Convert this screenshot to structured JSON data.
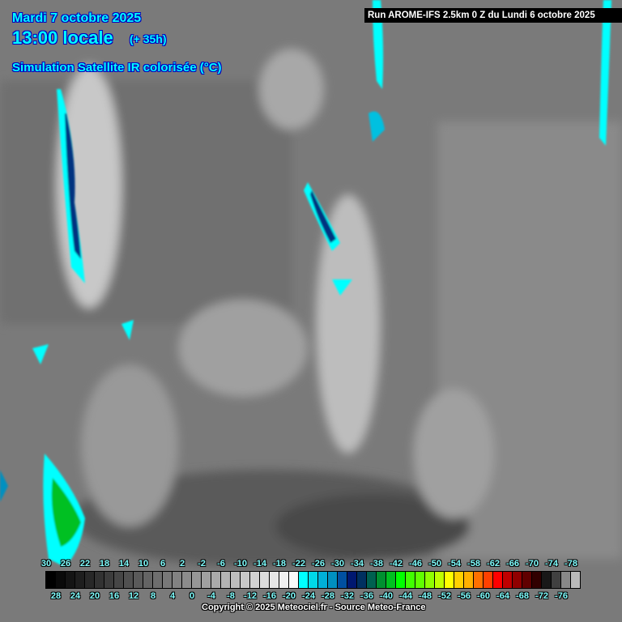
{
  "header": {
    "date": "Mardi 7 octobre 2025",
    "time": "13:00 locale",
    "lead": "(+ 35h)",
    "product": "Simulation Satellite IR colorisée (°C)",
    "run": "Run AROME-IFS 2.5km 0 Z du Lundi 6 octobre 2025"
  },
  "legend": {
    "unit": "°C",
    "values": [
      30,
      28,
      26,
      24,
      22,
      20,
      18,
      16,
      14,
      12,
      10,
      8,
      6,
      4,
      2,
      0,
      -2,
      -4,
      -6,
      -8,
      -10,
      -12,
      -14,
      -16,
      -18,
      -20,
      -22,
      -24,
      -26,
      -28,
      -30,
      -32,
      -34,
      -36,
      -38,
      -40,
      -42,
      -44,
      -46,
      -48,
      -50,
      -52,
      -54,
      -56,
      -58,
      -60,
      -62,
      -64,
      -66,
      -68,
      -70,
      -72,
      -74,
      -76,
      -78
    ],
    "colors": [
      "#000000",
      "#0a0a0a",
      "#141414",
      "#1e1e1e",
      "#282828",
      "#323232",
      "#3c3c3c",
      "#464646",
      "#505050",
      "#5a5a5a",
      "#646464",
      "#6e6e6e",
      "#787878",
      "#828282",
      "#8c8c8c",
      "#969696",
      "#a0a0a0",
      "#aaaaaa",
      "#b4b4b4",
      "#bebebe",
      "#c8c8c8",
      "#d2d2d2",
      "#dcdcdc",
      "#e6e6e6",
      "#f0f0f0",
      "#fafafa",
      "#00ffff",
      "#00d8e8",
      "#00b0d8",
      "#0090c0",
      "#0050a0",
      "#001870",
      "#003060",
      "#006050",
      "#009030",
      "#00c020",
      "#00ff00",
      "#40ff00",
      "#60ff00",
      "#90ff00",
      "#c0ff00",
      "#ffff00",
      "#ffd000",
      "#ffb000",
      "#ff7000",
      "#ff4000",
      "#ff0000",
      "#c00000",
      "#900000",
      "#600000",
      "#300000",
      "#181818",
      "#404040",
      "#888888",
      "#bbbbbb"
    ]
  },
  "footer": {
    "copyright": "Copyright © 2025 Meteociel.fr - Source Meteo-France"
  }
}
